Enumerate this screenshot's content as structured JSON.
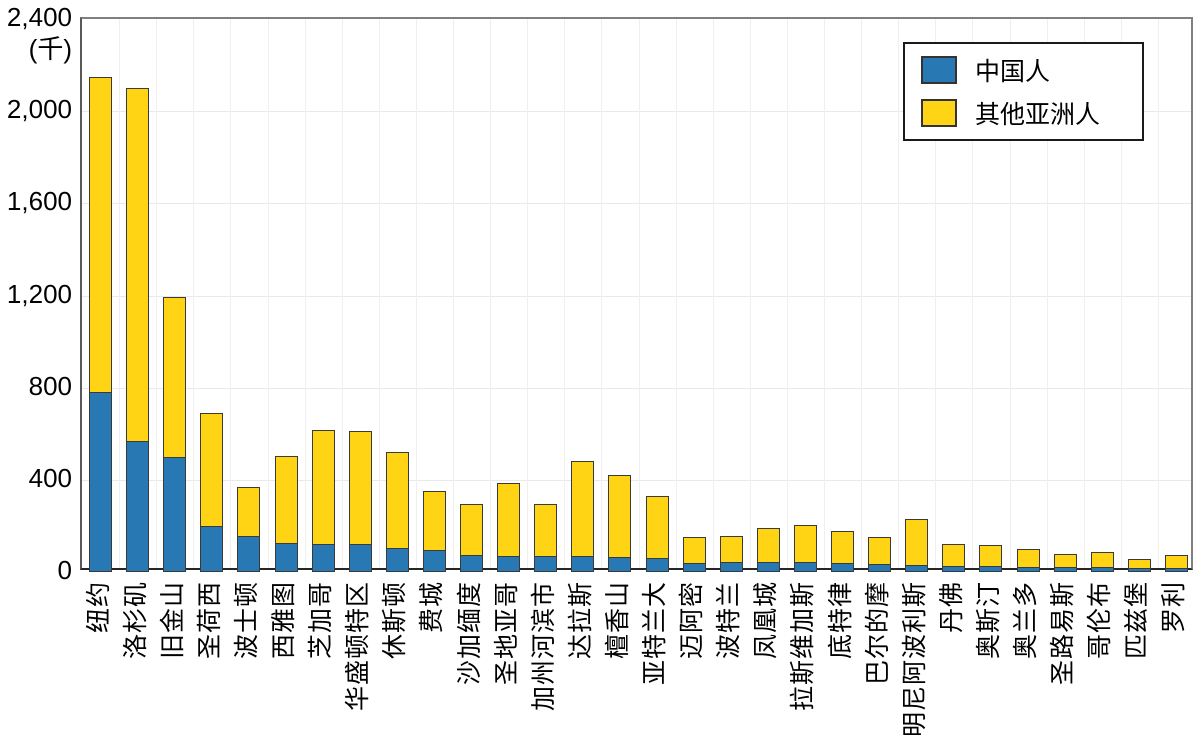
{
  "chart_data": {
    "type": "bar",
    "stacked": true,
    "title": "",
    "xlabel": "",
    "ylabel": "",
    "unit_label": "(千)",
    "ylim": [
      0,
      2400
    ],
    "ytick_step": 400,
    "ytick_labels": [
      "0",
      "400",
      "800",
      "1,200",
      "1,600",
      "2,000",
      "2,400"
    ],
    "grid": true,
    "legend_position": "top-right",
    "categories": [
      "纽约",
      "洛杉矶",
      "旧金山",
      "圣荷西",
      "波士顿",
      "西雅图",
      "芝加哥",
      "华盛顿特区",
      "休斯顿",
      "费城",
      "沙加缅度",
      "圣地亚哥",
      "加州河滨市",
      "达拉斯",
      "檀香山",
      "亚特兰大",
      "迈阿密",
      "波特兰",
      "凤凰城",
      "拉斯维加斯",
      "底特律",
      "巴尔的摩",
      "明尼阿波利斯",
      "丹佛",
      "奥斯汀",
      "奥兰多",
      "圣路易斯",
      "哥伦布",
      "匹兹堡",
      "罗利"
    ],
    "series": [
      {
        "name": "中国人",
        "color": "#2878b4",
        "values": [
          775,
          565,
          495,
          195,
          150,
          120,
          115,
          115,
          100,
          90,
          70,
          65,
          65,
          65,
          60,
          55,
          35,
          38,
          38,
          38,
          35,
          30,
          28,
          22,
          23,
          18,
          17,
          16,
          14,
          12
        ]
      },
      {
        "name": "其他亚洲人",
        "color": "#ffd414",
        "values": [
          1375,
          1535,
          700,
          495,
          220,
          385,
          500,
          495,
          420,
          260,
          225,
          320,
          230,
          415,
          360,
          275,
          115,
          117,
          152,
          167,
          145,
          120,
          202,
          98,
          94,
          83,
          59,
          70,
          43,
          61
        ]
      }
    ]
  },
  "colors": {
    "chinese": "#2878b4",
    "other_asian": "#ffd414",
    "bar_border": "#3a3a3a",
    "grid_horizontal": "#e9e9e9",
    "grid_vertical": "#efefef",
    "axis": "#262626"
  }
}
